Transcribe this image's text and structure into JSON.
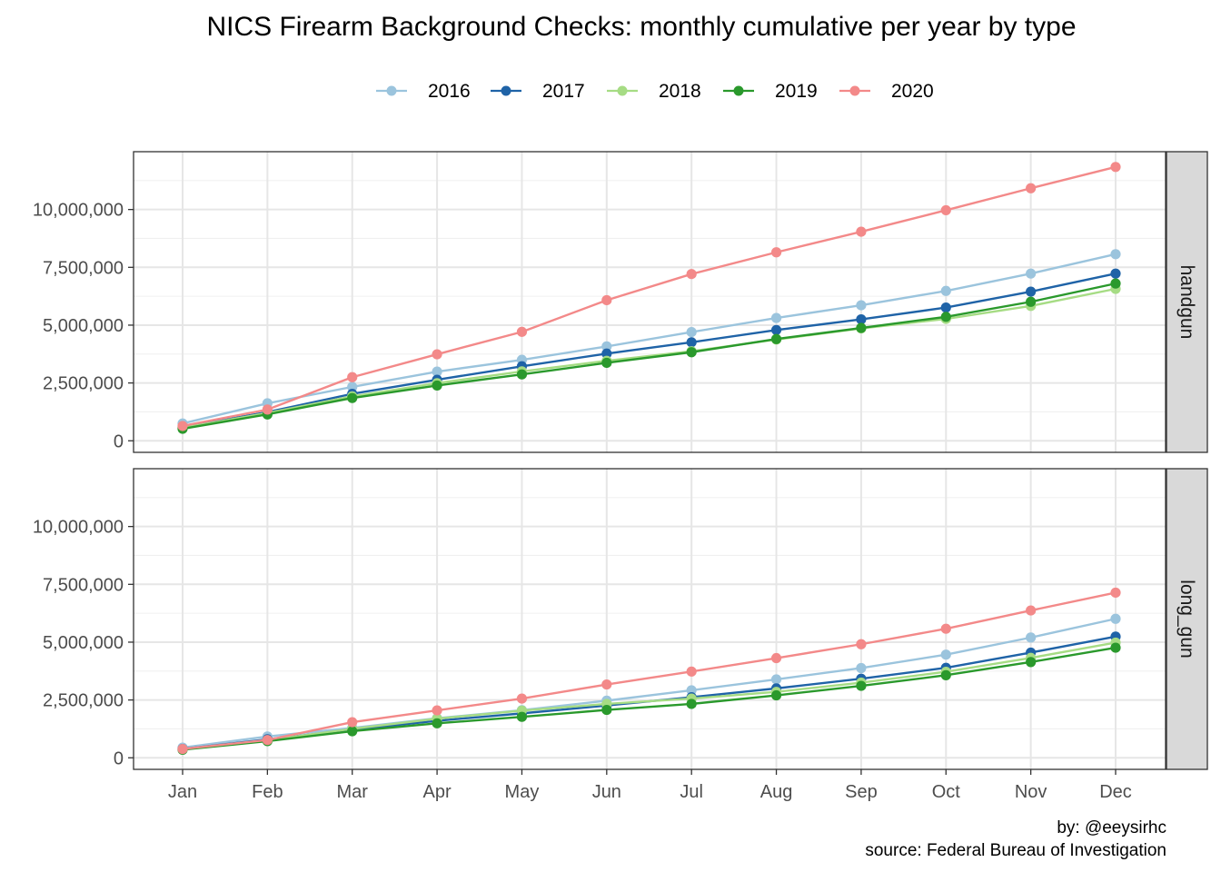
{
  "chart_data": {
    "type": "line",
    "title": "NICS Firearm Background Checks: monthly cumulative per year by type",
    "x": [
      "Jan",
      "Feb",
      "Mar",
      "Apr",
      "May",
      "Jun",
      "Jul",
      "Aug",
      "Sep",
      "Oct",
      "Nov",
      "Dec"
    ],
    "ylim": [
      -500000,
      12500000
    ],
    "y_ticks": [
      0,
      2500000,
      5000000,
      7500000,
      10000000
    ],
    "y_tick_labels": [
      "0",
      "2,500,000",
      "5,000,000",
      "7,500,000",
      "10,000,000"
    ],
    "grid": true,
    "legend_position": "top",
    "legend": [
      {
        "name": "2016",
        "color": "#9BC4DD"
      },
      {
        "name": "2017",
        "color": "#1F63A7"
      },
      {
        "name": "2018",
        "color": "#A6DC84"
      },
      {
        "name": "2019",
        "color": "#2A992C"
      },
      {
        "name": "2020",
        "color": "#F38989"
      }
    ],
    "panels": [
      {
        "label": "handgun",
        "series": [
          {
            "name": "2016",
            "values": [
              750000,
              1620000,
              2330000,
              2990000,
              3500000,
              4080000,
              4700000,
              5310000,
              5860000,
              6480000,
              7230000,
              8070000
            ]
          },
          {
            "name": "2017",
            "values": [
              580000,
              1240000,
              2030000,
              2640000,
              3220000,
              3770000,
              4260000,
              4790000,
              5250000,
              5760000,
              6450000,
              7230000
            ]
          },
          {
            "name": "2018",
            "values": [
              560000,
              1200000,
              1920000,
              2490000,
              3000000,
              3460000,
              3870000,
              4380000,
              4860000,
              5270000,
              5830000,
              6570000
            ]
          },
          {
            "name": "2019",
            "values": [
              520000,
              1140000,
              1850000,
              2390000,
              2870000,
              3370000,
              3830000,
              4400000,
              4880000,
              5360000,
              6010000,
              6800000
            ]
          },
          {
            "name": "2020",
            "values": [
              640000,
              1350000,
              2750000,
              3740000,
              4710000,
              6080000,
              7210000,
              8150000,
              9040000,
              9970000,
              10920000,
              11840000
            ]
          }
        ]
      },
      {
        "label": "long_gun",
        "series": [
          {
            "name": "2016",
            "values": [
              440000,
              920000,
              1290000,
              1710000,
              2060000,
              2470000,
              2920000,
              3390000,
              3880000,
              4460000,
              5200000,
              6010000
            ]
          },
          {
            "name": "2017",
            "values": [
              380000,
              800000,
              1210000,
              1600000,
              1920000,
              2260000,
              2620000,
              3000000,
              3420000,
              3890000,
              4550000,
              5240000
            ]
          },
          {
            "name": "2018",
            "values": [
              360000,
              760000,
              1250000,
              1690000,
              2040000,
              2330000,
              2560000,
              2850000,
              3250000,
              3720000,
              4320000,
              4980000
            ]
          },
          {
            "name": "2019",
            "values": [
              350000,
              720000,
              1150000,
              1490000,
              1770000,
              2070000,
              2330000,
              2700000,
              3110000,
              3570000,
              4140000,
              4760000
            ]
          },
          {
            "name": "2020",
            "values": [
              380000,
              770000,
              1540000,
              2050000,
              2560000,
              3170000,
              3730000,
              4310000,
              4910000,
              5580000,
              6370000,
              7140000
            ]
          }
        ]
      }
    ],
    "caption_lines": [
      "by: @eeysirhc",
      "source: Federal Bureau of Investigation"
    ]
  }
}
